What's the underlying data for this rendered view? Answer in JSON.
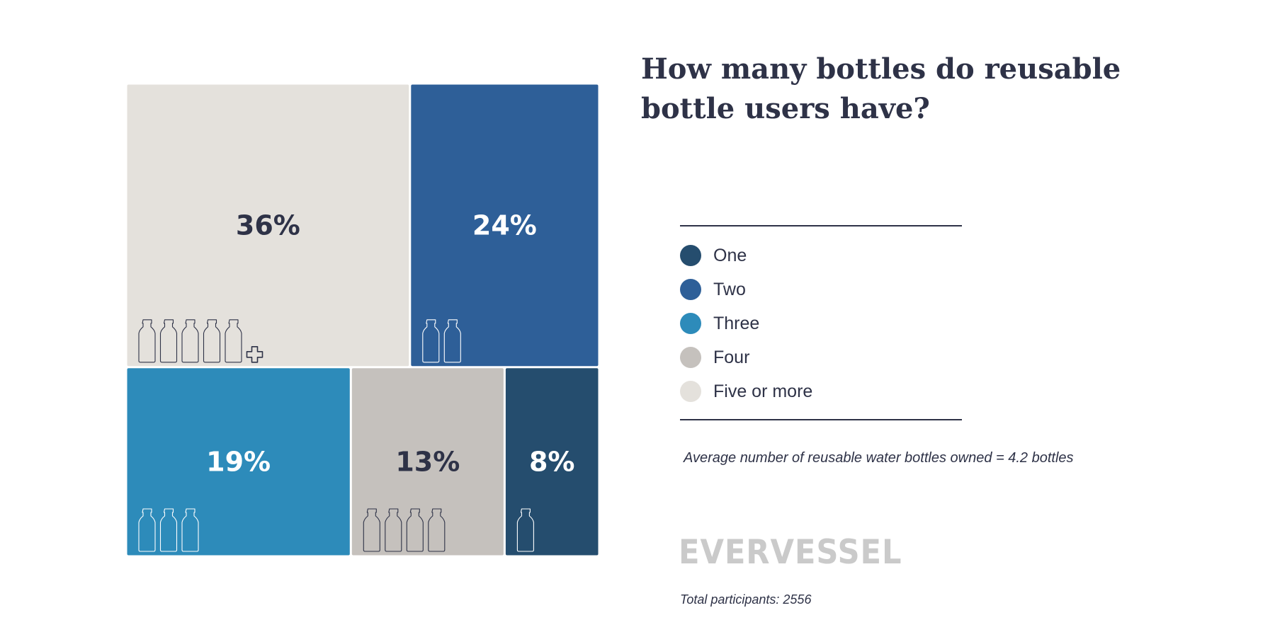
{
  "chart_data": {
    "type": "treemap",
    "title": "How many bottles do reusable bottle users have?",
    "cells": [
      {
        "name": "Five or more",
        "value": 36,
        "label": "36%",
        "color": "#e4e1dc",
        "text_color": "#2e3247",
        "icon_color": "#2e3247",
        "bottles": 5,
        "plus": true
      },
      {
        "name": "Two",
        "value": 24,
        "label": "24%",
        "color": "#2e5f98",
        "text_color": "#ffffff",
        "icon_color": "#ffffff",
        "bottles": 2,
        "plus": false
      },
      {
        "name": "Three",
        "value": 19,
        "label": "19%",
        "color": "#2d8bba",
        "text_color": "#ffffff",
        "icon_color": "#ffffff",
        "bottles": 3,
        "plus": false
      },
      {
        "name": "Four",
        "value": 13,
        "label": "13%",
        "color": "#c5c1bd",
        "text_color": "#2e3247",
        "icon_color": "#2e3247",
        "bottles": 4,
        "plus": false
      },
      {
        "name": "One",
        "value": 8,
        "label": "8%",
        "color": "#254d6e",
        "text_color": "#ffffff",
        "icon_color": "#ffffff",
        "bottles": 1,
        "plus": false
      }
    ]
  },
  "legend": {
    "items": [
      {
        "label": "One",
        "color": "#254d6e"
      },
      {
        "label": "Two",
        "color": "#2e5f98"
      },
      {
        "label": "Three",
        "color": "#2d8bba"
      },
      {
        "label": "Four",
        "color": "#c5c1bd"
      },
      {
        "label": "Five or more",
        "color": "#e4e1dc"
      }
    ]
  },
  "note": "Average number of reusable water bottles owned = 4.2 bottles",
  "brand": "EVERVESSEL",
  "footer": "Total participants: 2556"
}
